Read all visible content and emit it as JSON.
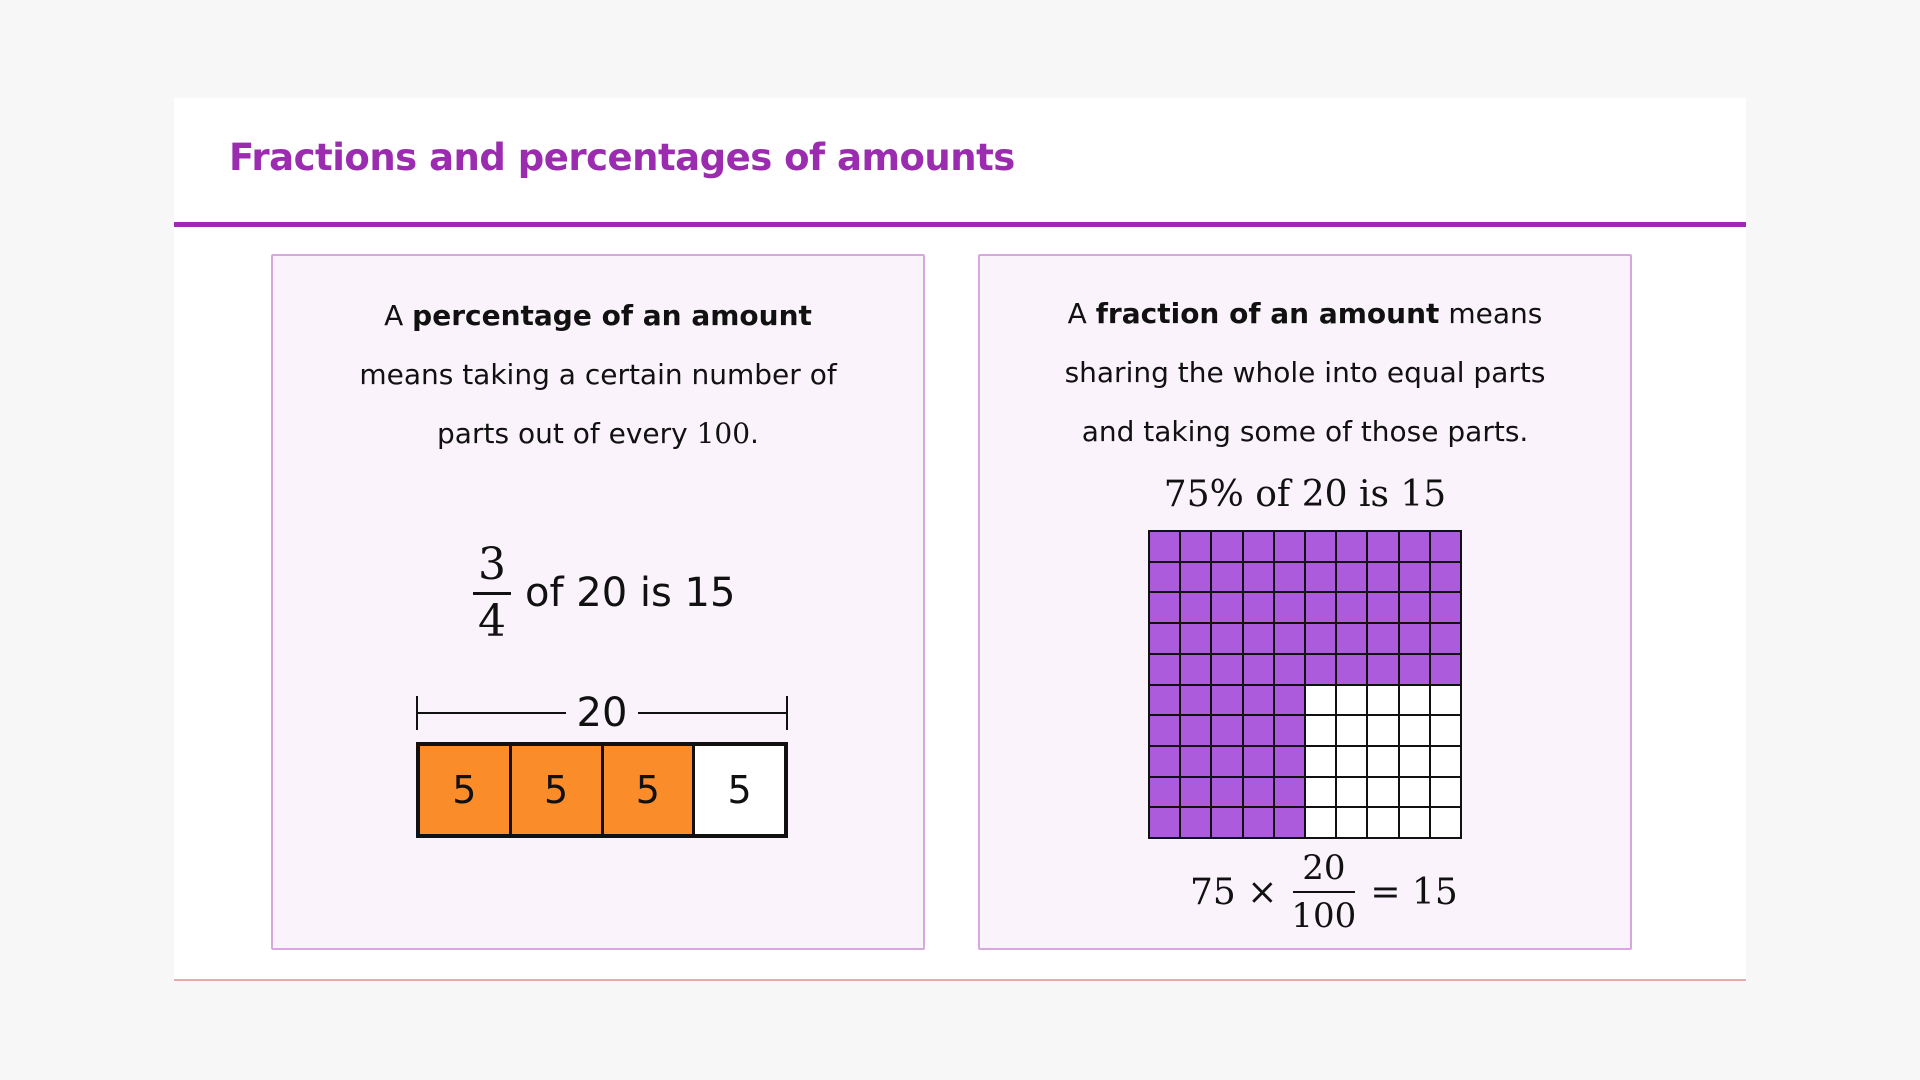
{
  "title": "Fractions and percentages of amounts",
  "left_panel": {
    "desc_prefix": "A ",
    "desc_bold": "percentage of an amount",
    "desc_line2": "means taking a certain number of",
    "desc_line3_prefix": "parts out of every ",
    "desc_line3_num": "100",
    "desc_line3_suffix": ".",
    "fraction_numerator": "3",
    "fraction_denominator": "4",
    "statement_text": "of 20 is 15",
    "bar_model": {
      "total": "20",
      "cells": [
        {
          "label": "5",
          "filled": true
        },
        {
          "label": "5",
          "filled": true
        },
        {
          "label": "5",
          "filled": true
        },
        {
          "label": "5",
          "filled": false
        }
      ]
    }
  },
  "right_panel": {
    "desc_prefix": "A ",
    "desc_bold": "fraction of an amount",
    "desc_suffix": " means",
    "desc_line2": "sharing the whole into equal parts",
    "desc_line3": "and taking some of those parts.",
    "grid_caption": "75% of 20 is 15",
    "grid": {
      "rows": 10,
      "cols": 10,
      "shaded_count": 75,
      "shaded_color": "#ac5bdc"
    },
    "equation": {
      "left": "75 ×",
      "numerator": "20",
      "denominator": "100",
      "right": "= 15"
    }
  },
  "colors": {
    "title": "#9b2cb0",
    "panel_bg": "#faf3fb",
    "panel_border": "#d9a7df",
    "bar_fill": "#fb8c2a"
  }
}
